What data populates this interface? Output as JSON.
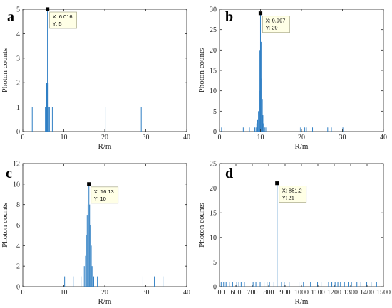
{
  "colors": {
    "series": "#2f7fc4",
    "axis": "#262626",
    "tooltip_fill": "#ffffe6",
    "tooltip_border": "#9a9a7a",
    "marker": "#000000"
  },
  "chart_data": [
    {
      "id": "a",
      "type": "bar",
      "panel_label": "a",
      "xlabel": "R/m",
      "ylabel": "Photon counts",
      "xlim": [
        0,
        40
      ],
      "ylim": [
        0,
        5
      ],
      "xticks": [
        0,
        10,
        20,
        30,
        40
      ],
      "yticks": [
        0,
        1,
        2,
        3,
        4,
        5
      ],
      "grid": false,
      "bars": [
        [
          2.3,
          1
        ],
        [
          5.5,
          1
        ],
        [
          5.7,
          1
        ],
        [
          5.8,
          2
        ],
        [
          5.9,
          2
        ],
        [
          6.016,
          5
        ],
        [
          6.1,
          3
        ],
        [
          6.2,
          2
        ],
        [
          6.3,
          1
        ],
        [
          6.5,
          1
        ],
        [
          7.2,
          1
        ],
        [
          20.1,
          1
        ],
        [
          28.9,
          1
        ]
      ],
      "datatip": {
        "x_label": "X: 6.016",
        "y_label": "Y: 5",
        "x": 6.016,
        "y": 5
      }
    },
    {
      "id": "b",
      "type": "bar",
      "panel_label": "b",
      "xlabel": "R/m",
      "ylabel": "Photon counts",
      "xlim": [
        0,
        40
      ],
      "ylim": [
        0,
        30
      ],
      "xticks": [
        0,
        10,
        20,
        30,
        40
      ],
      "yticks": [
        0,
        5,
        10,
        15,
        20,
        25,
        30
      ],
      "grid": false,
      "bars": [
        [
          0.5,
          1
        ],
        [
          1.3,
          1
        ],
        [
          5.8,
          1
        ],
        [
          7.3,
          1
        ],
        [
          8.6,
          1
        ],
        [
          8.9,
          1
        ],
        [
          9.1,
          2
        ],
        [
          9.3,
          3
        ],
        [
          9.5,
          5
        ],
        [
          9.7,
          10
        ],
        [
          9.85,
          20
        ],
        [
          9.997,
          29
        ],
        [
          10.15,
          22
        ],
        [
          10.3,
          13
        ],
        [
          10.45,
          8
        ],
        [
          10.6,
          4
        ],
        [
          10.8,
          2
        ],
        [
          11.0,
          1
        ],
        [
          11.3,
          1
        ],
        [
          19.4,
          1
        ],
        [
          19.8,
          1
        ],
        [
          20.8,
          1
        ],
        [
          21.2,
          1
        ],
        [
          22.7,
          1
        ],
        [
          26.4,
          1
        ],
        [
          27.3,
          1
        ],
        [
          30.1,
          1
        ]
      ],
      "datatip": {
        "x_label": "X: 9.997",
        "y_label": "Y: 29",
        "x": 9.997,
        "y": 29
      }
    },
    {
      "id": "c",
      "type": "bar",
      "panel_label": "c",
      "xlabel": "R/m",
      "ylabel": "Photon counts",
      "xlim": [
        0,
        40
      ],
      "ylim": [
        0,
        12
      ],
      "xticks": [
        0,
        10,
        20,
        30,
        40
      ],
      "yticks": [
        0,
        2,
        4,
        6,
        8,
        10,
        12
      ],
      "grid": false,
      "bars": [
        [
          10.2,
          1
        ],
        [
          12.3,
          1
        ],
        [
          14.2,
          1
        ],
        [
          14.7,
          2
        ],
        [
          15.0,
          2
        ],
        [
          15.3,
          3
        ],
        [
          15.5,
          5
        ],
        [
          15.7,
          7
        ],
        [
          15.9,
          8
        ],
        [
          16.13,
          10
        ],
        [
          16.3,
          8
        ],
        [
          16.5,
          6
        ],
        [
          16.7,
          4
        ],
        [
          16.9,
          2
        ],
        [
          17.3,
          1
        ],
        [
          18.2,
          1
        ],
        [
          29.3,
          1
        ],
        [
          32.1,
          1
        ],
        [
          34.2,
          1
        ]
      ],
      "datatip": {
        "x_label": "X: 16.13",
        "y_label": "Y: 10",
        "x": 16.13,
        "y": 10
      }
    },
    {
      "id": "d",
      "type": "bar",
      "panel_label": "d",
      "xlabel": "R/m",
      "ylabel": "Photon counts",
      "xlim": [
        500,
        1500
      ],
      "ylim": [
        0,
        25
      ],
      "xticks": [
        500,
        600,
        700,
        800,
        900,
        1000,
        1100,
        1200,
        1300,
        1400,
        1500
      ],
      "yticks": [
        0,
        5,
        10,
        15,
        20,
        25
      ],
      "grid": false,
      "bars": [
        [
          510,
          1
        ],
        [
          525,
          1
        ],
        [
          540,
          1
        ],
        [
          560,
          1
        ],
        [
          580,
          1
        ],
        [
          605,
          1
        ],
        [
          618,
          1
        ],
        [
          632,
          1
        ],
        [
          652,
          1
        ],
        [
          705,
          1
        ],
        [
          722,
          1
        ],
        [
          748,
          1
        ],
        [
          772,
          1
        ],
        [
          790,
          1
        ],
        [
          805,
          1
        ],
        [
          832,
          1
        ],
        [
          851.2,
          21
        ],
        [
          878,
          1
        ],
        [
          895,
          1
        ],
        [
          925,
          1
        ],
        [
          985,
          1
        ],
        [
          998,
          1
        ],
        [
          1012,
          1
        ],
        [
          1055,
          1
        ],
        [
          1098,
          1
        ],
        [
          1120,
          1
        ],
        [
          1165,
          1
        ],
        [
          1185,
          1
        ],
        [
          1205,
          1
        ],
        [
          1222,
          1
        ],
        [
          1238,
          1
        ],
        [
          1262,
          1
        ],
        [
          1285,
          1
        ],
        [
          1305,
          1
        ],
        [
          1338,
          1
        ],
        [
          1362,
          1
        ],
        [
          1398,
          1
        ],
        [
          1425,
          1
        ],
        [
          1458,
          1
        ]
      ],
      "datatip": {
        "x_label": "X: 851.2",
        "y_label": "Y: 21",
        "x": 851.2,
        "y": 21
      }
    }
  ]
}
